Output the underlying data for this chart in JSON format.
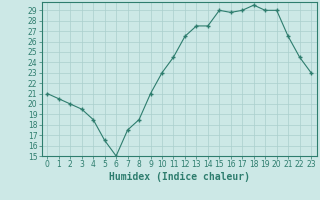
{
  "x": [
    0,
    1,
    2,
    3,
    4,
    5,
    6,
    7,
    8,
    9,
    10,
    11,
    12,
    13,
    14,
    15,
    16,
    17,
    18,
    19,
    20,
    21,
    22,
    23
  ],
  "y": [
    21,
    20.5,
    20,
    19.5,
    18.5,
    16.5,
    15,
    17.5,
    18.5,
    21,
    23,
    24.5,
    26.5,
    27.5,
    27.5,
    29,
    28.8,
    29,
    29.5,
    29,
    29,
    26.5,
    24.5,
    23
  ],
  "line_color": "#2e7d6e",
  "marker": "+",
  "bg_color": "#cce8e6",
  "grid_color": "#aacfcd",
  "xlabel": "Humidex (Indice chaleur)",
  "xlim": [
    -0.5,
    23.5
  ],
  "ylim": [
    15,
    29.8
  ],
  "yticks": [
    15,
    16,
    17,
    18,
    19,
    20,
    21,
    22,
    23,
    24,
    25,
    26,
    27,
    28,
    29
  ],
  "xticks": [
    0,
    1,
    2,
    3,
    4,
    5,
    6,
    7,
    8,
    9,
    10,
    11,
    12,
    13,
    14,
    15,
    16,
    17,
    18,
    19,
    20,
    21,
    22,
    23
  ],
  "tick_color": "#2e7d6e",
  "axis_color": "#2e7d6e",
  "font_color": "#2e7d6e",
  "xlabel_fontsize": 7,
  "tick_fontsize": 5.5,
  "linewidth": 0.8,
  "markersize": 3.5,
  "markeredgewidth": 1.0
}
